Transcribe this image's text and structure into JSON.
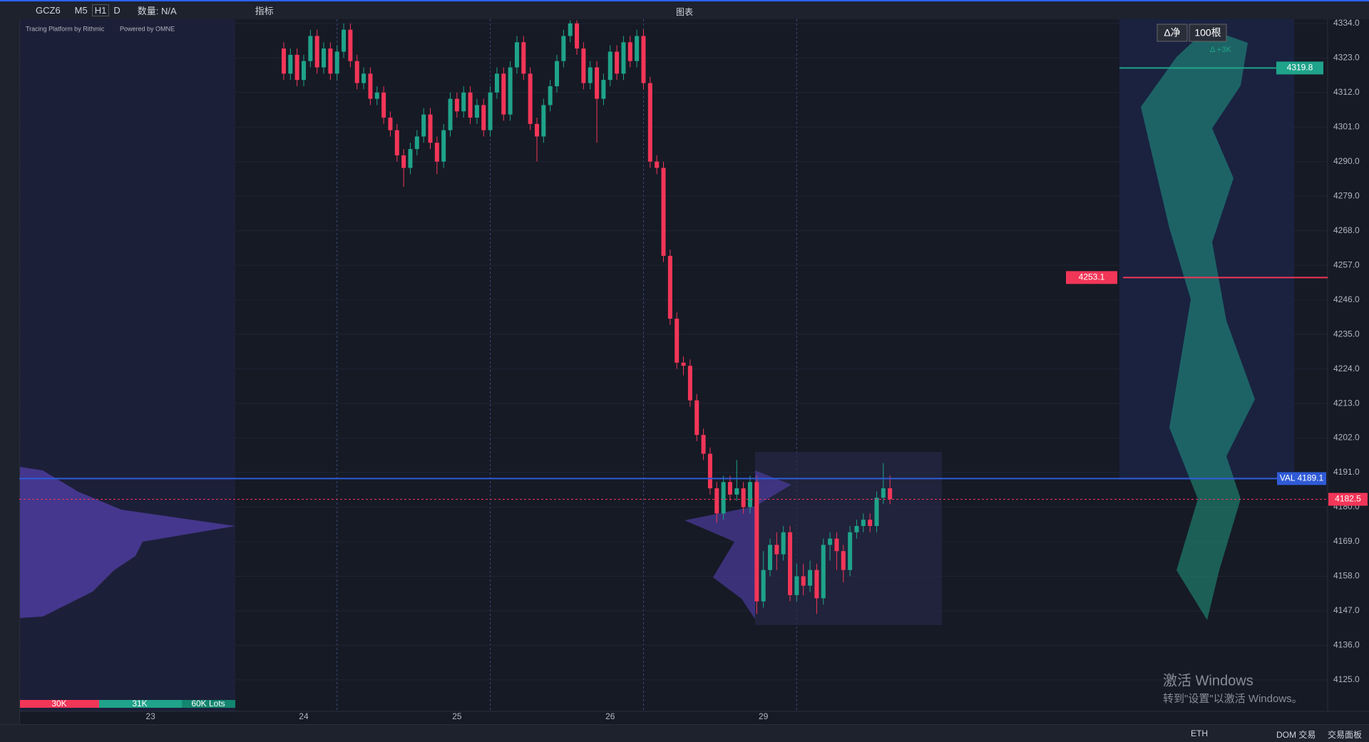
{
  "toolbar": {
    "symbol": "GCZ6",
    "intervals": [
      "M5",
      "H1",
      "D"
    ],
    "quantity": "数量: N/A",
    "indicators": "指标",
    "window_title": "图表"
  },
  "credits": {
    "platform": "Tracing Platform by Rithmic",
    "powered": "Powered by OMNE"
  },
  "chart_controls": {
    "delta_mode": "Δ净",
    "bars": "100根",
    "delta": "Δ +3K"
  },
  "profile_legend": [
    "30K",
    "31K",
    "60K Lots"
  ],
  "watermark": {
    "title": "激活 Windows",
    "text": "转到\"设置\"以激活 Windows。"
  },
  "status_bar": {
    "session": "ETH",
    "dom": "DOM 交易",
    "panel": "交易面板"
  },
  "chart_data": {
    "type": "candlestick",
    "up_color": "#1fa38a",
    "down_color": "#f23658",
    "categories": [
      "23",
      null,
      null,
      null,
      null,
      null,
      null,
      null,
      null,
      null,
      null,
      null,
      null,
      null,
      null,
      null,
      null,
      null,
      null,
      null,
      null,
      null,
      null,
      "24",
      null,
      null,
      null,
      null,
      null,
      null,
      null,
      null,
      null,
      null,
      null,
      null,
      null,
      null,
      null,
      null,
      null,
      null,
      null,
      null,
      null,
      null,
      "25",
      null,
      null,
      null,
      null,
      null,
      null,
      null,
      null,
      null,
      null,
      null,
      null,
      null,
      null,
      null,
      null,
      null,
      null,
      null,
      null,
      null,
      null,
      "26",
      null,
      null,
      null,
      null,
      null,
      null,
      null,
      null,
      null,
      null,
      null,
      null,
      null,
      null,
      null,
      null,
      null,
      null,
      null,
      null,
      null,
      null,
      "29",
      null,
      null,
      null,
      null,
      null,
      null,
      null,
      null,
      null,
      null,
      null,
      null,
      null,
      null,
      null,
      null,
      null,
      null,
      null
    ],
    "open": [
      null,
      null,
      null,
      null,
      null,
      null,
      null,
      null,
      null,
      null,
      null,
      null,
      null,
      null,
      null,
      null,
      null,
      null,
      null,
      null,
      4326,
      4318,
      4324,
      4316,
      4322,
      4330,
      4320,
      4326,
      4318,
      4325,
      4332,
      4322,
      4315,
      4318,
      4310,
      4312,
      4304,
      4300,
      4292,
      4288,
      4294,
      4298,
      4305,
      4296,
      4290,
      4300,
      4310,
      4306,
      4312,
      4304,
      4308,
      4300,
      4312,
      4318,
      4305,
      4320,
      4328,
      4318,
      4302,
      4298,
      4308,
      4314,
      4322,
      4330,
      4334,
      4326,
      4315,
      4320,
      4310,
      4316,
      4325,
      4318,
      4328,
      4322,
      4330,
      4315,
      4290,
      4288,
      4260,
      4240,
      4226,
      4225,
      4214,
      4203,
      4197,
      4186,
      4178,
      4188,
      4184,
      4186,
      4180,
      4188,
      4150,
      4160,
      4168,
      4165,
      4172,
      4152,
      4158,
      4155,
      4160,
      4151,
      4168,
      4170,
      4166,
      4160,
      4172,
      4174,
      4176,
      4174,
      4183,
      4186
    ],
    "high": [
      null,
      null,
      null,
      null,
      null,
      null,
      null,
      null,
      null,
      null,
      null,
      null,
      null,
      null,
      null,
      null,
      null,
      null,
      null,
      null,
      4328,
      4326,
      4326,
      4324,
      4332,
      4332,
      4328,
      4328,
      4327,
      4334,
      4334,
      4324,
      4320,
      4320,
      4314,
      4314,
      4306,
      4302,
      4294,
      4296,
      4300,
      4307,
      4307,
      4298,
      4302,
      4312,
      4312,
      4314,
      4314,
      4310,
      4310,
      4314,
      4320,
      4320,
      4322,
      4330,
      4330,
      4320,
      4304,
      4310,
      4316,
      4324,
      4332,
      4335,
      4335,
      4328,
      4322,
      4322,
      4318,
      4327,
      4327,
      4330,
      4330,
      4332,
      4332,
      4317,
      4292,
      4290,
      4262,
      4242,
      4228,
      4227,
      4216,
      4205,
      4199,
      4188,
      4190,
      4190,
      4195,
      4188,
      4190,
      4190,
      4166,
      4170,
      4172,
      4174,
      4174,
      4162,
      4162,
      4163,
      4162,
      4170,
      4172,
      4172,
      4168,
      4174,
      4176,
      4178,
      4178,
      4185,
      4194,
      4190
    ],
    "low": [
      null,
      null,
      null,
      null,
      null,
      null,
      null,
      null,
      null,
      null,
      null,
      null,
      null,
      null,
      null,
      null,
      null,
      null,
      null,
      null,
      4316,
      4316,
      4314,
      4314,
      4320,
      4318,
      4318,
      4316,
      4316,
      4323,
      4320,
      4313,
      4313,
      4308,
      4308,
      4302,
      4298,
      4290,
      4282,
      4286,
      4292,
      4296,
      4294,
      4286,
      4288,
      4298,
      4304,
      4304,
      4302,
      4302,
      4298,
      4298,
      4310,
      4303,
      4303,
      4318,
      4316,
      4300,
      4290,
      4296,
      4306,
      4312,
      4320,
      4328,
      4324,
      4313,
      4313,
      4296,
      4308,
      4314,
      4316,
      4316,
      4320,
      4320,
      4313,
      4288,
      4286,
      4258,
      4238,
      4224,
      4222,
      4212,
      4201,
      4195,
      4184,
      4175,
      4176,
      4182,
      4182,
      4178,
      4178,
      4146,
      4148,
      4158,
      4160,
      4163,
      4150,
      4150,
      4152,
      4153,
      4146,
      4149,
      4163,
      4160,
      4156,
      4158,
      4170,
      4172,
      4172,
      4172,
      4181,
      4181
    ],
    "close": [
      null,
      null,
      null,
      null,
      null,
      null,
      null,
      null,
      null,
      null,
      null,
      null,
      null,
      null,
      null,
      null,
      null,
      null,
      null,
      null,
      4318,
      4324,
      4316,
      4322,
      4330,
      4320,
      4326,
      4318,
      4325,
      4332,
      4322,
      4315,
      4318,
      4310,
      4312,
      4304,
      4300,
      4292,
      4288,
      4294,
      4298,
      4305,
      4296,
      4290,
      4300,
      4310,
      4306,
      4312,
      4304,
      4308,
      4300,
      4312,
      4318,
      4305,
      4320,
      4328,
      4318,
      4302,
      4298,
      4308,
      4314,
      4322,
      4330,
      4334,
      4326,
      4315,
      4320,
      4310,
      4316,
      4325,
      4318,
      4328,
      4322,
      4330,
      4315,
      4290,
      4288,
      4260,
      4240,
      4226,
      4225,
      4214,
      4203,
      4197,
      4186,
      4178,
      4188,
      4184,
      4186,
      4180,
      4188,
      4150,
      4160,
      4168,
      4165,
      4172,
      4152,
      4158,
      4155,
      4160,
      4151,
      4168,
      4170,
      4166,
      4160,
      4172,
      4174,
      4176,
      4174,
      4183,
      4186,
      4182.5
    ],
    "ylim": [
      4115,
      4336
    ],
    "yticks": [
      {
        "value": 4334,
        "label": "4334.0"
      },
      {
        "value": 4323,
        "label": "4323.0"
      },
      {
        "value": 4312,
        "label": "4312.0"
      },
      {
        "value": 4301,
        "label": "4301.0"
      },
      {
        "value": 4290,
        "label": "4290.0"
      },
      {
        "value": 4279,
        "label": "4279.0"
      },
      {
        "value": 4268,
        "label": "4268.0"
      },
      {
        "value": 4257,
        "label": "4257.0"
      },
      {
        "value": 4246,
        "label": "4246.0"
      },
      {
        "value": 4235,
        "label": "4235.0"
      },
      {
        "value": 4224,
        "label": "4224.0"
      },
      {
        "value": 4213,
        "label": "4213.0"
      },
      {
        "value": 4202,
        "label": "4202.0"
      },
      {
        "value": 4191,
        "label": "4191.0"
      },
      {
        "value": 4180,
        "label": "4180.0"
      },
      {
        "value": 4169,
        "label": "4169.0"
      },
      {
        "value": 4158,
        "label": "4158.0"
      },
      {
        "value": 4147,
        "label": "4147.0"
      },
      {
        "value": 4136,
        "label": "4136.0"
      },
      {
        "value": 4125,
        "label": "4125.0"
      }
    ],
    "grid": true,
    "levels": [
      {
        "label": "VAL 4189.1",
        "value": 4189.1,
        "color": "#2f5bd6"
      },
      {
        "value": 4182.5,
        "color": "#f23658"
      },
      {
        "value": 4253.1,
        "color": "#f23658"
      },
      {
        "value": 4319.8,
        "color": "#1fa38a"
      }
    ]
  }
}
